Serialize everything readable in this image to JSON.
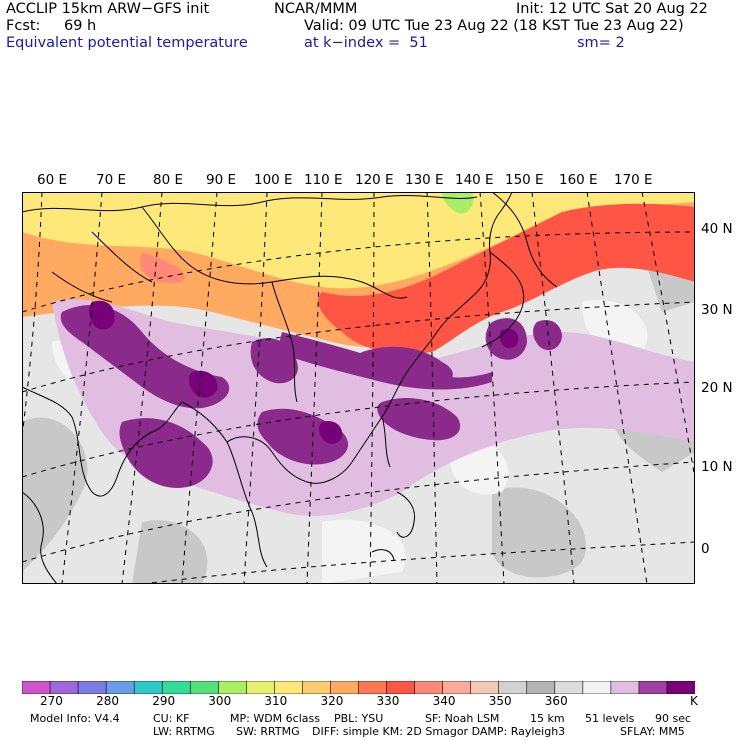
{
  "header": {
    "model": "ACCLIP 15km ARW−GFS init",
    "org": "NCAR/MMM",
    "init": "Init: 12 UTC Sat 20 Aug 22",
    "fcst_label": "Fcst:",
    "fcst_value": "69 h",
    "valid": "Valid: 09 UTC Tue 23 Aug 22 (18 KST Tue 23 Aug 22)",
    "field": "Equivalent potential temperature",
    "level": "at k−index =  51",
    "smoothing": "sm= 2"
  },
  "map": {
    "lon_labels": [
      "60 E",
      "70 E",
      "80 E",
      "90 E",
      "100 E",
      "110 E",
      "120 E",
      "130 E",
      "140 E",
      "150 E",
      "160 E",
      "170 E"
    ],
    "lat_labels": [
      "40 N",
      "30 N",
      "20 N",
      "10 N",
      "0"
    ]
  },
  "colorbar": {
    "colors": [
      "#cc55cc",
      "#a066dd",
      "#7b7be3",
      "#6a9ce8",
      "#2ec8c8",
      "#33dd99",
      "#55e07a",
      "#a8ee66",
      "#e8f070",
      "#ffe87a",
      "#ffcc70",
      "#ffaa60",
      "#ff7755",
      "#ff5544",
      "#ff8877",
      "#ffaa99",
      "#f2c8b4",
      "#d2d2d2",
      "#b4b4b4",
      "#dcdcdc",
      "#f2f2f2",
      "#e2bde2",
      "#a040a0",
      "#780078"
    ],
    "labels": [
      "270",
      "280",
      "290",
      "300",
      "310",
      "320",
      "330",
      "340",
      "350",
      "360"
    ],
    "unit": "K"
  },
  "footer": {
    "line1": [
      {
        "k": "model_info",
        "text": "Model Info: V4.4"
      },
      {
        "k": "cu",
        "text": "CU: KF"
      },
      {
        "k": "mp",
        "text": "MP: WDM 6class"
      },
      {
        "k": "pbl",
        "text": "PBL: YSU"
      },
      {
        "k": "sf",
        "text": "SF: Noah LSM"
      },
      {
        "k": "res",
        "text": "15 km"
      },
      {
        "k": "levels",
        "text": "51 levels"
      },
      {
        "k": "dt",
        "text": "90 sec"
      }
    ],
    "line2": [
      {
        "k": "lw",
        "text": "LW: RRTMG"
      },
      {
        "k": "sw",
        "text": "SW: RRTMG"
      },
      {
        "k": "diff",
        "text": "DIFF: simple KM: 2D Smagor DAMP: Rayleigh3"
      },
      {
        "k": "sflay",
        "text": "SFLAY: MM5"
      }
    ]
  }
}
